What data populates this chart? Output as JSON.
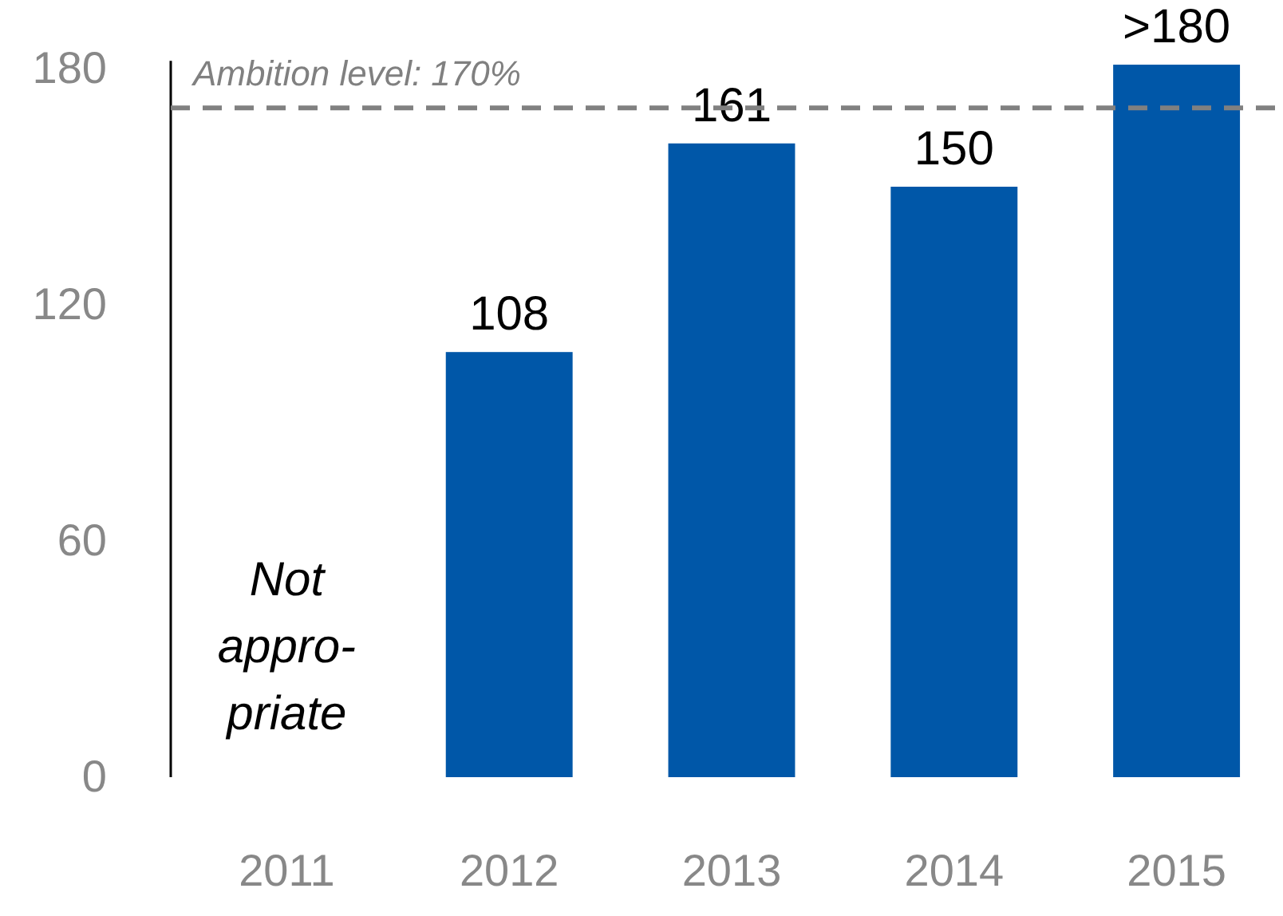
{
  "chart_data": {
    "type": "bar",
    "categories": [
      "2011",
      "2012",
      "2013",
      "2014",
      "2015"
    ],
    "values": [
      null,
      108,
      161,
      150,
      181
    ],
    "value_labels": [
      null,
      "108",
      "161",
      "150",
      ">180"
    ],
    "color": "#0057a8",
    "ylim": [
      0,
      182
    ],
    "yticks": [
      0,
      60,
      120,
      180
    ],
    "grid": false,
    "ref_lines": [
      {
        "axis": "y",
        "value": 170,
        "label": "Ambition level: 170%",
        "color": "#808080",
        "line_style": "dashed"
      }
    ],
    "annotations": [
      "Not appro-priate"
    ]
  }
}
